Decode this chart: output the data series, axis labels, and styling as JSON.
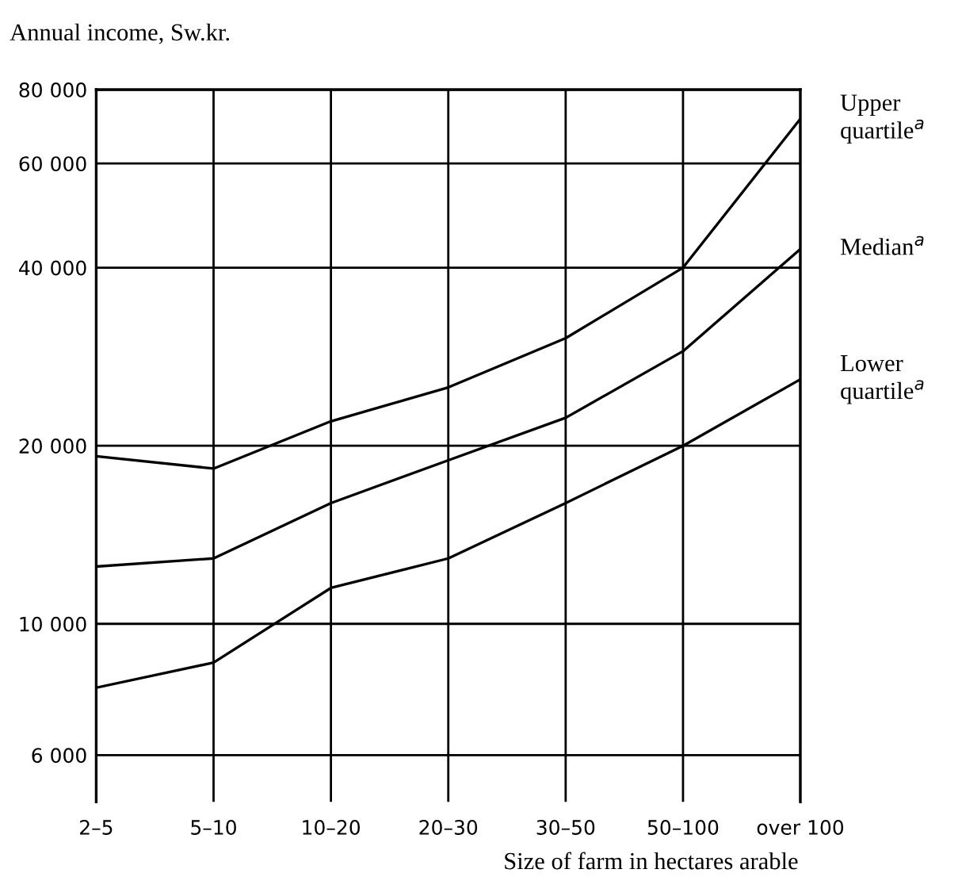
{
  "chart_data": {
    "type": "line",
    "ylabel": "Annual income, Sw.kr.",
    "xlabel": "Size of farm in hectares arable",
    "categories": [
      "2–5",
      "5–10",
      "10–20",
      "20–30",
      "30–50",
      "50–100",
      "over 100"
    ],
    "series": [
      {
        "name": "Upper\nquartile$^{a}$",
        "color": "#000000",
        "values": [
          19200,
          18300,
          22000,
          25100,
          30400,
          40000,
          71400
        ]
      },
      {
        "name": "Median$^{a}$",
        "color": "#000000",
        "values": [
          12500,
          12900,
          16000,
          18900,
          22300,
          28900,
          43000
        ]
      },
      {
        "name": "Lower\nquartile$^{a}$",
        "color": "#000000",
        "values": [
          7800,
          8600,
          11500,
          12900,
          16000,
          20000,
          25900
        ]
      }
    ],
    "log": "y",
    "ylim": [
      5000,
      80000
    ],
    "yticks": [
      {
        "value": 6000,
        "label": "6 000"
      },
      {
        "value": 10000,
        "label": "10 000"
      },
      {
        "value": 20000,
        "label": "20 000"
      },
      {
        "value": 40000,
        "label": "40 000"
      },
      {
        "value": 60000,
        "label": "60 000"
      },
      {
        "value": 80000,
        "label": "80 000"
      }
    ],
    "grid": true,
    "marker": "none",
    "line_style": "solid"
  }
}
